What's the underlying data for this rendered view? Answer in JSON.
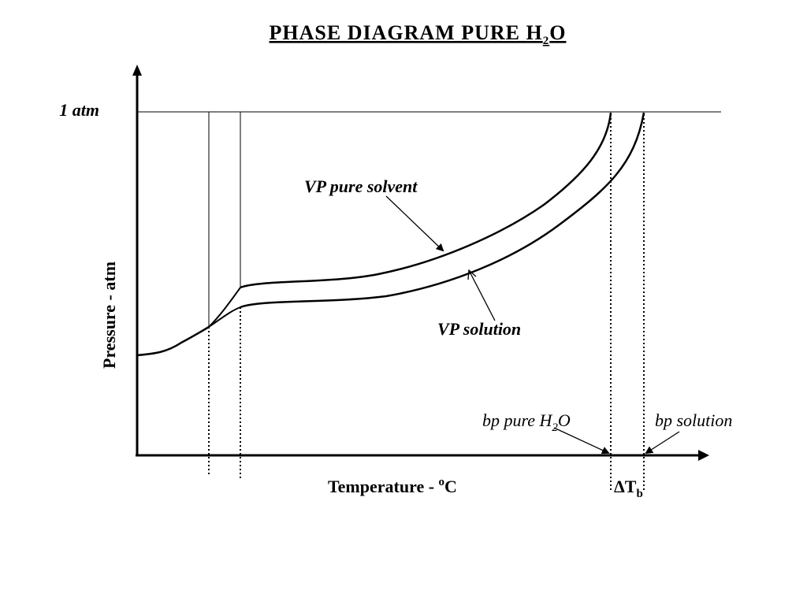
{
  "title": {
    "prefix": "PHASE    DIAGRAM    PURE  H",
    "sub": "2",
    "suffix": "O"
  },
  "axes": {
    "y_label": "Pressure - atm",
    "x_label_main": "Temperature - ",
    "x_label_sup": "o",
    "x_label_unit": "C",
    "pressure_line_label": "1 atm"
  },
  "curves": {
    "pure_solvent_label": "VP pure solvent",
    "solution_label": "VP solution"
  },
  "annotations": {
    "bp_pure_prefix": "bp pure H",
    "bp_pure_sub": "2",
    "bp_pure_suffix": "O",
    "bp_solution": "bp solution",
    "delta_tb_main": "ΔT",
    "delta_tb_sub": "b"
  }
}
